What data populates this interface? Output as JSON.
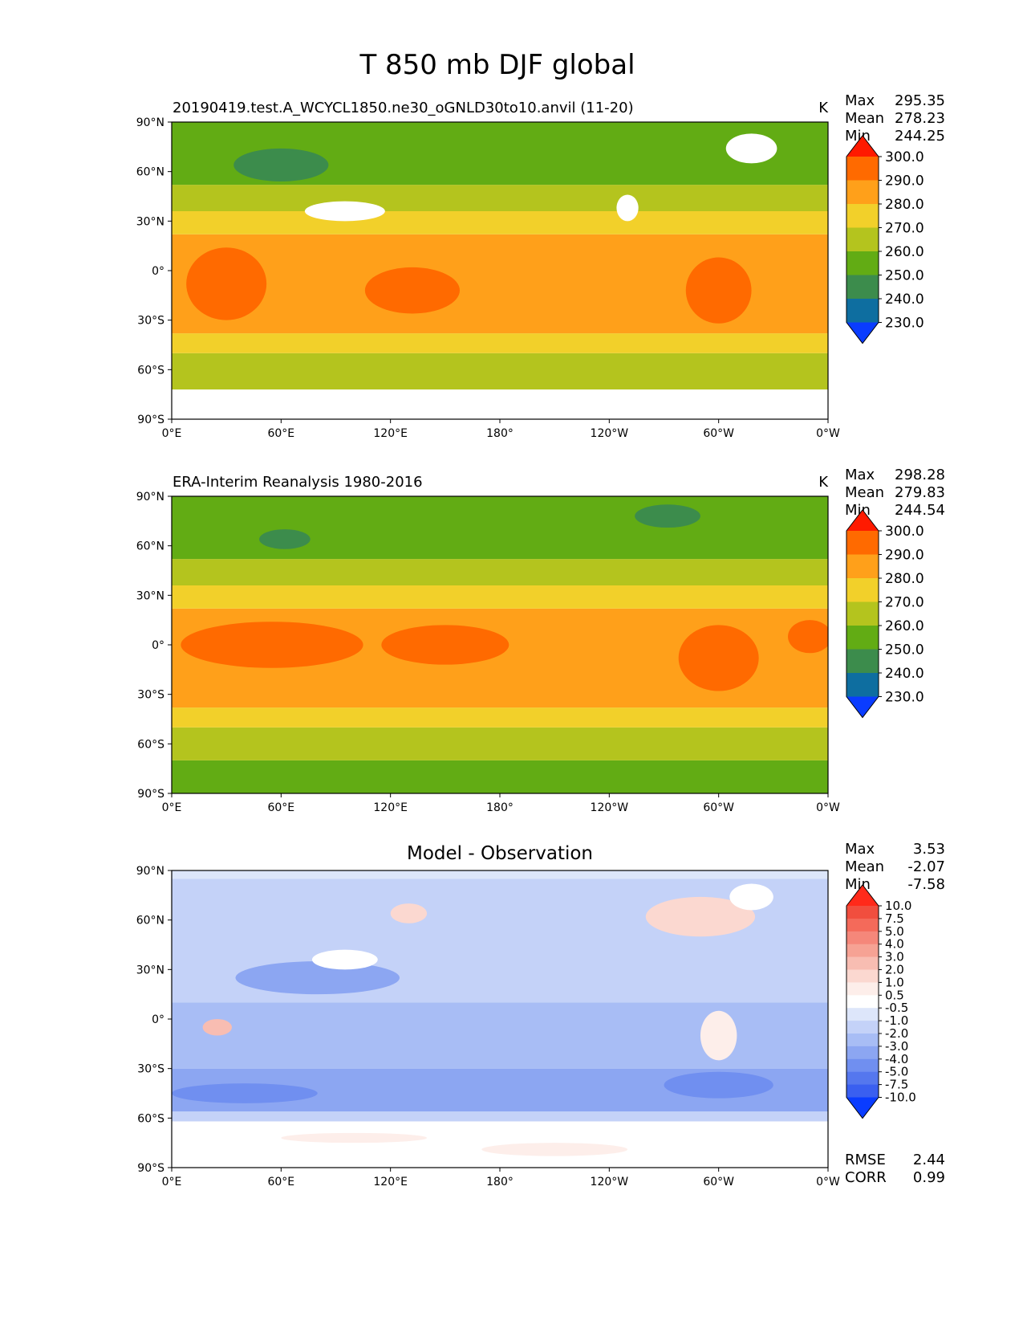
{
  "title": "T 850 mb DJF global",
  "chart_data": [
    {
      "type": "heatmap",
      "title": "20190419.test.A_WCYCL1850.ne30_oGNLD30to10.anvil (11-20)",
      "units": "K",
      "stats": {
        "Max": "295.35",
        "Mean": "278.23",
        "Min": "244.25"
      },
      "x_ticks": [
        "0°E",
        "60°E",
        "120°E",
        "180°",
        "120°W",
        "60°W",
        "0°W"
      ],
      "y_ticks": [
        "90°N",
        "60°N",
        "30°N",
        "0°",
        "30°S",
        "60°S",
        "90°S"
      ],
      "xlim": [
        0,
        360
      ],
      "ylim": [
        -90,
        90
      ],
      "colorbar": {
        "labels": [
          "300.0",
          "290.0",
          "280.0",
          "270.0",
          "260.0",
          "250.0",
          "240.0",
          "230.0"
        ],
        "colors": [
          "#ff1a00",
          "#ff6a00",
          "#ffa01a",
          "#f2d02a",
          "#b4c41e",
          "#62ac14",
          "#3c8c4c",
          "#0e6ea0",
          "#0a3cff"
        ]
      },
      "bands": [
        {
          "lat_min": -90,
          "lat_max": -72,
          "value": "missing"
        },
        {
          "lat_min": -72,
          "lat_max": -50,
          "value": 260
        },
        {
          "lat_min": -50,
          "lat_max": -38,
          "value": 270
        },
        {
          "lat_min": -38,
          "lat_max": 22,
          "value": 280
        },
        {
          "lat_min": 22,
          "lat_max": 36,
          "value": 270
        },
        {
          "lat_min": 36,
          "lat_max": 52,
          "value": 260
        },
        {
          "lat_min": 52,
          "lat_max": 90,
          "value": 250
        }
      ],
      "patches": [
        {
          "lon": 60,
          "lat": 64,
          "rx": 26,
          "ry": 10,
          "value": 240
        },
        {
          "lon": 30,
          "lat": -8,
          "rx": 22,
          "ry": 22,
          "value": 290
        },
        {
          "lon": 132,
          "lat": -12,
          "rx": 26,
          "ry": 14,
          "value": 290
        },
        {
          "lon": 300,
          "lat": -12,
          "rx": 18,
          "ry": 20,
          "value": 290
        },
        {
          "lon": 95,
          "lat": 36,
          "rx": 22,
          "ry": 6,
          "value": "missing"
        },
        {
          "lon": 318,
          "lat": 74,
          "rx": 14,
          "ry": 9,
          "value": "missing"
        },
        {
          "lon": 250,
          "lat": 38,
          "rx": 6,
          "ry": 8,
          "value": "missing"
        },
        {
          "lon": 200,
          "lat": -85,
          "rx": 60,
          "ry": 6,
          "value": "missing"
        }
      ]
    },
    {
      "type": "heatmap",
      "title": "ERA-Interim Reanalysis 1980-2016",
      "units": "K",
      "stats": {
        "Max": "298.28",
        "Mean": "279.83",
        "Min": "244.54"
      },
      "x_ticks": [
        "0°E",
        "60°E",
        "120°E",
        "180°",
        "120°W",
        "60°W",
        "0°W"
      ],
      "y_ticks": [
        "90°N",
        "60°N",
        "30°N",
        "0°",
        "30°S",
        "60°S",
        "90°S"
      ],
      "xlim": [
        0,
        360
      ],
      "ylim": [
        -90,
        90
      ],
      "colorbar": {
        "labels": [
          "300.0",
          "290.0",
          "280.0",
          "270.0",
          "260.0",
          "250.0",
          "240.0",
          "230.0"
        ],
        "colors": [
          "#ff1a00",
          "#ff6a00",
          "#ffa01a",
          "#f2d02a",
          "#b4c41e",
          "#62ac14",
          "#3c8c4c",
          "#0e6ea0",
          "#0a3cff"
        ]
      },
      "bands": [
        {
          "lat_min": -90,
          "lat_max": -70,
          "value": 250
        },
        {
          "lat_min": -70,
          "lat_max": -50,
          "value": 260
        },
        {
          "lat_min": -50,
          "lat_max": -38,
          "value": 270
        },
        {
          "lat_min": -38,
          "lat_max": 22,
          "value": 280
        },
        {
          "lat_min": 22,
          "lat_max": 36,
          "value": 270
        },
        {
          "lat_min": 36,
          "lat_max": 52,
          "value": 260
        },
        {
          "lat_min": 52,
          "lat_max": 90,
          "value": 250
        }
      ],
      "patches": [
        {
          "lon": 62,
          "lat": 64,
          "rx": 14,
          "ry": 6,
          "value": 240
        },
        {
          "lon": 272,
          "lat": 78,
          "rx": 18,
          "ry": 7,
          "value": 240
        },
        {
          "lon": 55,
          "lat": 0,
          "rx": 50,
          "ry": 14,
          "value": 290
        },
        {
          "lon": 150,
          "lat": 0,
          "rx": 35,
          "ry": 12,
          "value": 290
        },
        {
          "lon": 300,
          "lat": -8,
          "rx": 22,
          "ry": 20,
          "value": 290
        },
        {
          "lon": 350,
          "lat": 5,
          "rx": 12,
          "ry": 10,
          "value": 290
        }
      ]
    },
    {
      "type": "heatmap",
      "title": "Model - Observation",
      "units": "",
      "stats": {
        "Max": "3.53",
        "Mean": "-2.07",
        "Min": "-7.58"
      },
      "metrics": {
        "RMSE": "2.44",
        "CORR": "0.99"
      },
      "x_ticks": [
        "0°E",
        "60°E",
        "120°E",
        "180°",
        "120°W",
        "60°W",
        "0°W"
      ],
      "y_ticks": [
        "90°N",
        "60°N",
        "30°N",
        "0°",
        "30°S",
        "60°S",
        "90°S"
      ],
      "xlim": [
        0,
        360
      ],
      "ylim": [
        -90,
        90
      ],
      "colorbar": {
        "labels": [
          "10.0",
          "7.5",
          "5.0",
          "4.0",
          "3.0",
          "2.0",
          "1.0",
          "0.5",
          "-0.5",
          "-1.0",
          "-2.0",
          "-3.0",
          "-4.0",
          "-5.0",
          "-7.5",
          "-10.0"
        ],
        "colors": [
          "#ff2a1a",
          "#f14e3e",
          "#f46a5a",
          "#f5877a",
          "#f6a294",
          "#f8bdb2",
          "#fbd8d0",
          "#fdeeea",
          "#ffffff",
          "#dde6fa",
          "#c4d2f8",
          "#a8bdf5",
          "#8ca6f2",
          "#708ff0",
          "#5577ee",
          "#3a5ff0",
          "#0a3cff"
        ]
      },
      "bands": [
        {
          "lat_min": -90,
          "lat_max": -62,
          "value": 0
        },
        {
          "lat_min": -62,
          "lat_max": -56,
          "value": -1.5
        },
        {
          "lat_min": -56,
          "lat_max": -30,
          "value": -3.5
        },
        {
          "lat_min": -30,
          "lat_max": 10,
          "value": -2.5
        },
        {
          "lat_min": 10,
          "lat_max": 45,
          "value": -1.5
        },
        {
          "lat_min": 45,
          "lat_max": 85,
          "value": -1.5
        },
        {
          "lat_min": 85,
          "lat_max": 90,
          "value": -0.75
        }
      ],
      "patches": [
        {
          "lon": 80,
          "lat": 25,
          "rx": 45,
          "ry": 10,
          "value": -3.5
        },
        {
          "lon": 40,
          "lat": -45,
          "rx": 40,
          "ry": 6,
          "value": -4.5
        },
        {
          "lon": 300,
          "lat": -40,
          "rx": 30,
          "ry": 8,
          "value": -4.5
        },
        {
          "lon": 290,
          "lat": 62,
          "rx": 30,
          "ry": 12,
          "value": 1.5
        },
        {
          "lon": 130,
          "lat": 64,
          "rx": 10,
          "ry": 6,
          "value": 1.5
        },
        {
          "lon": 25,
          "lat": -5,
          "rx": 8,
          "ry": 5,
          "value": 2.5
        },
        {
          "lon": 300,
          "lat": -10,
          "rx": 10,
          "ry": 15,
          "value": 0.75
        },
        {
          "lon": 100,
          "lat": -72,
          "rx": 40,
          "ry": 3,
          "value": 0.75
        },
        {
          "lon": 210,
          "lat": -79,
          "rx": 40,
          "ry": 4,
          "value": 0.75
        },
        {
          "lon": 95,
          "lat": 36,
          "rx": 18,
          "ry": 6,
          "value": "missing"
        },
        {
          "lon": 318,
          "lat": 74,
          "rx": 12,
          "ry": 8,
          "value": "missing"
        }
      ]
    }
  ]
}
